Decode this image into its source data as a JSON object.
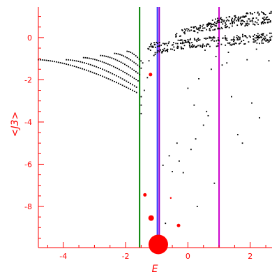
{
  "chart_data": {
    "type": "scatter",
    "xlabel": "E",
    "ylabel": "<J3>",
    "xlim": [
      -4.8,
      2.7
    ],
    "ylim": [
      -9.95,
      1.45
    ],
    "x_ticks": [
      -4,
      -2,
      0,
      2
    ],
    "y_ticks": [
      0,
      -2,
      -4,
      -6,
      -8
    ],
    "x_tick_labels": [
      "-4",
      "-2",
      "0",
      "2"
    ],
    "y_tick_labels": [
      "0",
      "-2",
      "-4",
      "-6",
      "-8"
    ],
    "grid": false,
    "colors": {
      "axis": "#ff0000",
      "points": "#000000",
      "highlight": "#ff0000",
      "line_green": "#008000",
      "line_blue": "#3333ff",
      "line_purple": "#9900cc",
      "line_magenta": "#cc00cc"
    },
    "vertical_lines": [
      {
        "x": -1.55,
        "color": "#008000"
      },
      {
        "x": -0.98,
        "color": "#3333ff"
      },
      {
        "x": -0.92,
        "color": "#9900cc"
      },
      {
        "x": 1.0,
        "color": "#cc00cc"
      }
    ],
    "highlight_points": [
      {
        "x": -0.95,
        "y": -9.8,
        "size": "large"
      },
      {
        "x": -1.18,
        "y": -8.55,
        "size": "medium"
      },
      {
        "x": -1.38,
        "y": -7.45,
        "size": "small"
      },
      {
        "x": -0.3,
        "y": -8.9,
        "size": "small"
      },
      {
        "x": -1.2,
        "y": -1.75,
        "size": "small"
      },
      {
        "x": -0.55,
        "y": -7.6,
        "size": "tiny"
      }
    ],
    "sequences": [
      {
        "x_start": -4.8,
        "x_end": -1.65,
        "y_start": -1.05,
        "y_end": -2.6,
        "count": 50
      },
      {
        "x_start": -3.9,
        "x_end": -1.65,
        "y_start": -1.05,
        "y_end": -2.35,
        "count": 36
      },
      {
        "x_start": -3.35,
        "x_end": -1.6,
        "y_start": -0.95,
        "y_end": -2.05,
        "count": 30
      },
      {
        "x_start": -2.8,
        "x_end": -1.55,
        "y_start": -0.85,
        "y_end": -1.75,
        "count": 22
      },
      {
        "x_start": -2.35,
        "x_end": -1.5,
        "y_start": -0.75,
        "y_end": -1.45,
        "count": 16
      },
      {
        "x_start": -1.95,
        "x_end": -1.45,
        "y_start": -0.65,
        "y_end": -1.2,
        "count": 10
      }
    ],
    "scatter_points": [
      {
        "x": -1.5,
        "y": -2.8
      },
      {
        "x": -1.5,
        "y": -3.2
      },
      {
        "x": -1.5,
        "y": -3.6
      },
      {
        "x": -1.4,
        "y": -2.5
      },
      {
        "x": -1.3,
        "y": -1.9
      },
      {
        "x": -1.25,
        "y": -1.1
      },
      {
        "x": -1.2,
        "y": -0.6
      },
      {
        "x": -1.1,
        "y": -0.45
      },
      {
        "x": -1.05,
        "y": -0.8
      },
      {
        "x": -0.8,
        "y": -6.05
      },
      {
        "x": -0.72,
        "y": -8.8
      },
      {
        "x": -0.6,
        "y": -5.6
      },
      {
        "x": -0.5,
        "y": -6.35
      },
      {
        "x": -0.35,
        "y": -5.0
      },
      {
        "x": -0.28,
        "y": -5.85
      },
      {
        "x": -0.15,
        "y": -6.4
      },
      {
        "x": 0.0,
        "y": -2.4
      },
      {
        "x": 0.1,
        "y": -5.3
      },
      {
        "x": 0.2,
        "y": -3.2
      },
      {
        "x": 0.25,
        "y": -4.8
      },
      {
        "x": 0.3,
        "y": -8.0
      },
      {
        "x": 0.35,
        "y": -1.95
      },
      {
        "x": 0.5,
        "y": -4.15
      },
      {
        "x": 0.6,
        "y": -3.5
      },
      {
        "x": 0.65,
        "y": -3.7
      },
      {
        "x": 0.75,
        "y": -1.5
      },
      {
        "x": 0.85,
        "y": -6.9
      },
      {
        "x": 1.1,
        "y": -1.3
      },
      {
        "x": 1.25,
        "y": -1.2
      },
      {
        "x": 1.4,
        "y": -2.8
      },
      {
        "x": 1.6,
        "y": -4.6
      },
      {
        "x": 1.75,
        "y": -5.0
      },
      {
        "x": 2.05,
        "y": -3.1
      },
      {
        "x": 2.3,
        "y": -3.8
      },
      {
        "x": 1.9,
        "y": -1.05
      },
      {
        "x": 2.6,
        "y": -1.1
      },
      {
        "x": 0.9,
        "y": -0.9
      },
      {
        "x": 1.3,
        "y": -0.7
      },
      {
        "x": 0.55,
        "y": -0.6
      },
      {
        "x": 2.2,
        "y": -0.55
      }
    ],
    "bands": [
      {
        "x_start": -1.3,
        "x_end": 2.7,
        "y_start": -0.5,
        "y_end": 0.1,
        "spread": 0.25,
        "count": 150
      },
      {
        "x_start": -1.1,
        "x_end": 2.7,
        "y_start": -0.8,
        "y_end": -0.15,
        "spread": 0.2,
        "count": 110
      },
      {
        "x_start": -0.4,
        "x_end": 2.7,
        "y_start": 0.0,
        "y_end": 0.85,
        "spread": 0.35,
        "count": 160
      },
      {
        "x_start": 0.6,
        "x_end": 2.7,
        "y_start": 0.5,
        "y_end": 1.2,
        "spread": 0.25,
        "count": 70
      }
    ]
  }
}
